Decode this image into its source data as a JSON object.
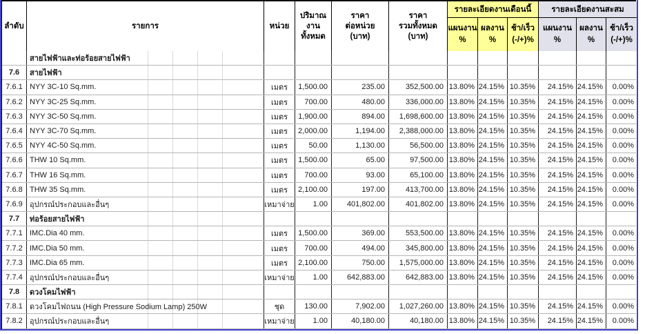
{
  "table": {
    "header": {
      "no": "ลำดับ",
      "item": "รายการ",
      "unit": "หน่วย",
      "quantity": "ปริมาณ\nงาน\nทั้งหมด",
      "unit_price": "ราคา\nต่อหน่วย\n(บาท)",
      "total_price": "ราคา\nรวมทั้งหมด\n(บาท)",
      "month_group": "รายละเอียดงานเดือนนี้",
      "cumulative_group": "รายละเอียดงานสะสม",
      "plan": "แผนงาน\n%",
      "actual": "ผลงาน\n%",
      "variance": "ช้า/เร็ว\n(-/+)%"
    },
    "rows": [
      {
        "type": "section",
        "no": "",
        "item": "สายไฟฟ้าและท่อร้อยสายไฟฟ้า",
        "unit": "",
        "qty": "",
        "unit_price": "",
        "total": "",
        "m_plan": "",
        "m_actual": "",
        "m_diff": "",
        "c_plan": "",
        "c_actual": "",
        "c_diff": ""
      },
      {
        "type": "section",
        "no": "7.6",
        "item": "สายไฟฟ้า",
        "unit": "",
        "qty": "",
        "unit_price": "",
        "total": "",
        "m_plan": "",
        "m_actual": "",
        "m_diff": "",
        "c_plan": "",
        "c_actual": "",
        "c_diff": ""
      },
      {
        "type": "item",
        "no": "7.6.1",
        "item": "NYY 3C-10 Sq.mm.",
        "unit": "เมตร",
        "qty": "1,500.00",
        "unit_price": "235.00",
        "total": "352,500.00",
        "m_plan": "13.80%",
        "m_actual": "24.15%",
        "m_diff": "10.35%",
        "c_plan": "24.15%",
        "c_actual": "24.15%",
        "c_diff": "0.00%"
      },
      {
        "type": "item",
        "no": "7.6.2",
        "item": "NYY 3C-25 Sq.mm.",
        "unit": "เมตร",
        "qty": "700.00",
        "unit_price": "480.00",
        "total": "336,000.00",
        "m_plan": "13.80%",
        "m_actual": "24.15%",
        "m_diff": "10.35%",
        "c_plan": "24.15%",
        "c_actual": "24.15%",
        "c_diff": "0.00%"
      },
      {
        "type": "item",
        "no": "7.6.3",
        "item": "NYY 3C-50 Sq.mm.",
        "unit": "เมตร",
        "qty": "1,900.00",
        "unit_price": "894.00",
        "total": "1,698,600.00",
        "m_plan": "13.80%",
        "m_actual": "24.15%",
        "m_diff": "10.35%",
        "c_plan": "24.15%",
        "c_actual": "24.15%",
        "c_diff": "0.00%"
      },
      {
        "type": "item",
        "no": "7.6.4",
        "item": "NYY 3C-70 Sq.mm.",
        "unit": "เมตร",
        "qty": "2,000.00",
        "unit_price": "1,194.00",
        "total": "2,388,000.00",
        "m_plan": "13.80%",
        "m_actual": "24.15%",
        "m_diff": "10.35%",
        "c_plan": "24.15%",
        "c_actual": "24.15%",
        "c_diff": "0.00%"
      },
      {
        "type": "item",
        "no": "7.6.5",
        "item": "NYY 4C-50 Sq.mm.",
        "unit": "เมตร",
        "qty": "50.00",
        "unit_price": "1,130.00",
        "total": "56,500.00",
        "m_plan": "13.80%",
        "m_actual": "24.15%",
        "m_diff": "10.35%",
        "c_plan": "24.15%",
        "c_actual": "24.15%",
        "c_diff": "0.00%"
      },
      {
        "type": "item",
        "no": "7.6.6",
        "item": "THW 10 Sq.mm.",
        "unit": "เมตร",
        "qty": "1,500.00",
        "unit_price": "65.00",
        "total": "97,500.00",
        "m_plan": "13.80%",
        "m_actual": "24.15%",
        "m_diff": "10.35%",
        "c_plan": "24.15%",
        "c_actual": "24.15%",
        "c_diff": "0.00%"
      },
      {
        "type": "item",
        "no": "7.6.7",
        "item": "THW 16 Sq.mm.",
        "unit": "เมตร",
        "qty": "700.00",
        "unit_price": "93.00",
        "total": "65,100.00",
        "m_plan": "13.80%",
        "m_actual": "24.15%",
        "m_diff": "10.35%",
        "c_plan": "24.15%",
        "c_actual": "24.15%",
        "c_diff": "0.00%"
      },
      {
        "type": "item",
        "no": "7.6.8",
        "item": "THW 35 Sq.mm.",
        "unit": "เมตร",
        "qty": "2,100.00",
        "unit_price": "197.00",
        "total": "413,700.00",
        "m_plan": "13.80%",
        "m_actual": "24.15%",
        "m_diff": "10.35%",
        "c_plan": "24.15%",
        "c_actual": "24.15%",
        "c_diff": "0.00%"
      },
      {
        "type": "item",
        "no": "7.6.9",
        "item": "อุปกรณ์ประกอบและอื่นๆ",
        "unit": "เหมาจ่าย",
        "qty": "1.00",
        "unit_price": "401,802.00",
        "total": "401,802.00",
        "m_plan": "13.80%",
        "m_actual": "24.15%",
        "m_diff": "10.35%",
        "c_plan": "24.15%",
        "c_actual": "24.15%",
        "c_diff": "0.00%"
      },
      {
        "type": "section",
        "no": "7.7",
        "item": "ท่อร้อยสายไฟฟ้า",
        "unit": "",
        "qty": "",
        "unit_price": "",
        "total": "",
        "m_plan": "",
        "m_actual": "",
        "m_diff": "",
        "c_plan": "",
        "c_actual": "",
        "c_diff": ""
      },
      {
        "type": "item",
        "no": "7.7.1",
        "item": "IMC.Dia 40 mm.",
        "unit": "เมตร",
        "qty": "1,500.00",
        "unit_price": "369.00",
        "total": "553,500.00",
        "m_plan": "13.80%",
        "m_actual": "24.15%",
        "m_diff": "10.35%",
        "c_plan": "24.15%",
        "c_actual": "24.15%",
        "c_diff": "0.00%"
      },
      {
        "type": "item",
        "no": "7.7.2",
        "item": "IMC.Dia 50 mm.",
        "unit": "เมตร",
        "qty": "700.00",
        "unit_price": "494.00",
        "total": "345,800.00",
        "m_plan": "13.80%",
        "m_actual": "24.15%",
        "m_diff": "10.35%",
        "c_plan": "24.15%",
        "c_actual": "24.15%",
        "c_diff": "0.00%"
      },
      {
        "type": "item",
        "no": "7.7.3",
        "item": "IMC.Dia 65 mm.",
        "unit": "เมตร",
        "qty": "2,100.00",
        "unit_price": "750.00",
        "total": "1,575,000.00",
        "m_plan": "13.80%",
        "m_actual": "24.15%",
        "m_diff": "10.35%",
        "c_plan": "24.15%",
        "c_actual": "24.15%",
        "c_diff": "0.00%"
      },
      {
        "type": "item",
        "no": "7.7.4",
        "item": "อุปกรณ์ประกอบและอื่นๆ",
        "unit": "เหมาจ่าย",
        "qty": "1.00",
        "unit_price": "642,883.00",
        "total": "642,883.00",
        "m_plan": "13.80%",
        "m_actual": "24.15%",
        "m_diff": "10.35%",
        "c_plan": "24.15%",
        "c_actual": "24.15%",
        "c_diff": "0.00%"
      },
      {
        "type": "section",
        "no": "7.8",
        "item": "ดวงโคมไฟฟ้า",
        "unit": "",
        "qty": "",
        "unit_price": "",
        "total": "",
        "m_plan": "",
        "m_actual": "",
        "m_diff": "",
        "c_plan": "",
        "c_actual": "",
        "c_diff": ""
      },
      {
        "type": "item",
        "no": "7.8.1",
        "item": "ดวงโคมไฟถนน (High Pressure Sodium Lamp) 250W",
        "unit": "ชุด",
        "qty": "130.00",
        "unit_price": "7,902.00",
        "total": "1,027,260.00",
        "m_plan": "13.80%",
        "m_actual": "24.15%",
        "m_diff": "10.35%",
        "c_plan": "24.15%",
        "c_actual": "24.15%",
        "c_diff": "0.00%"
      },
      {
        "type": "item",
        "no": "7.8.2",
        "item": "อุปกรณ์ประกอบและอื่นๆ",
        "unit": "เหมาจ่าย",
        "qty": "1.00",
        "unit_price": "40,180.00",
        "total": "40,180.00",
        "m_plan": "13.80%",
        "m_actual": "24.15%",
        "m_diff": "10.35%",
        "c_plan": "24.15%",
        "c_actual": "24.15%",
        "c_diff": "0.00%"
      }
    ]
  },
  "colors": {
    "month_header_bg": "#FFFF99",
    "cumulative_header_bg": "#E1E1EB",
    "page_break_line": "#4242C8"
  }
}
